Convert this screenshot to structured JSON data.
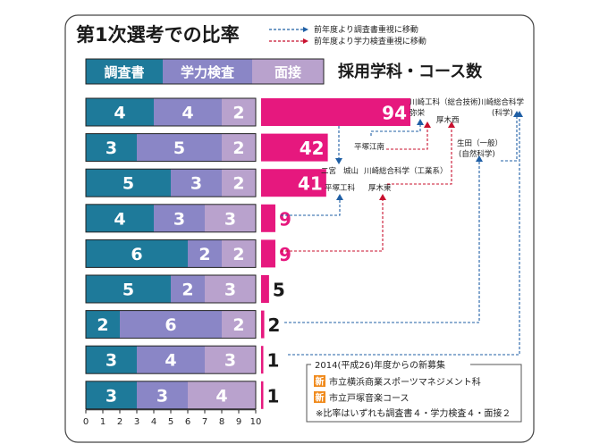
{
  "title": "第1次選考での比率",
  "arrow_legend": {
    "blue": "前年度より調査書重視に移動",
    "red": "前年度より学力検査重視に移動"
  },
  "segment_legend": [
    {
      "label": "調査書",
      "color": "#1e7a9a"
    },
    {
      "label": "学力検査",
      "color": "#8a86c6"
    },
    {
      "label": "面接",
      "color": "#b9a2cd"
    }
  ],
  "count_title": "採用学科・コース数",
  "colors": {
    "chosa": "#1e7a9a",
    "gakuryoku": "#8a86c6",
    "mensetsu": "#b9a2cd",
    "count_bar": "#e6187e",
    "blue_arrow": "#1f5fa5",
    "red_arrow": "#c8102e",
    "new_badge": "#f08a1c"
  },
  "chart_data": {
    "type": "bar",
    "series": [
      {
        "name": "調査書",
        "values": [
          4,
          3,
          5,
          4,
          6,
          5,
          2,
          3,
          3
        ]
      },
      {
        "name": "学力検査",
        "values": [
          4,
          5,
          3,
          3,
          2,
          2,
          6,
          4,
          3
        ]
      },
      {
        "name": "面接",
        "values": [
          2,
          2,
          2,
          3,
          2,
          3,
          2,
          3,
          4
        ]
      }
    ],
    "counts": [
      94,
      42,
      41,
      9,
      9,
      5,
      2,
      1,
      1
    ],
    "xlim": [
      0,
      10
    ],
    "ticks": [
      "0",
      "1",
      "2",
      "3",
      "4",
      "5",
      "6",
      "7",
      "8",
      "9",
      "10"
    ]
  },
  "schools": {
    "kawasaki_kogyo": "川崎工科（総合技術）",
    "yaei": "弥栄",
    "kawasaki_sogo": "川崎総合科学",
    "kawasaki_sogo_sub": "(科学)",
    "atsugi_nishi": "厚木西",
    "hiratsuka_konan": "平塚江南",
    "ikuta": "生田（一般）",
    "ikuta_sub": "(自然科学)",
    "ninomiya": "二宮",
    "shiroyama": "城山",
    "kawasaki_sogo_kogyo": "川崎総合科学（工業系）",
    "hiratsuka_koka": "平塚工科",
    "atsugi_higashi": "厚木東"
  },
  "notes": {
    "header": "2014(平成26)年度からの新募集",
    "badge": "新",
    "item1": "市立横浜商業スポーツマネジメント科",
    "item2": "市立戸塚音楽コース",
    "item3": "※比率はいずれも調査書４・学力検査４・面接２"
  }
}
